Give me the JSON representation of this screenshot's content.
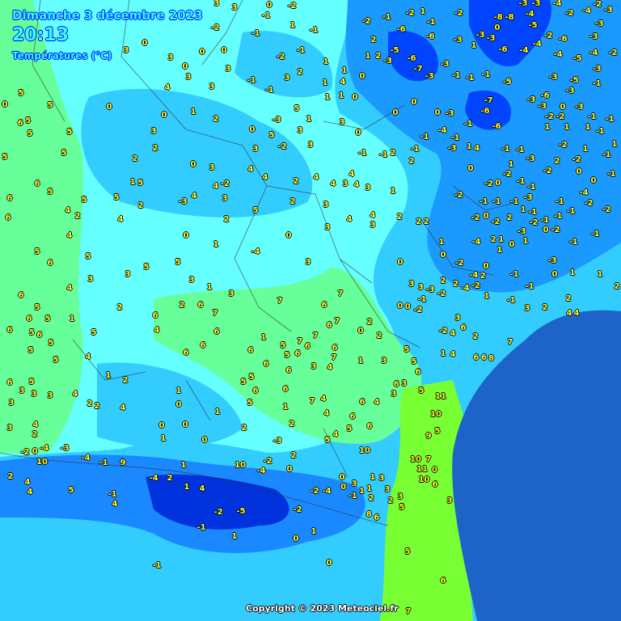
{
  "header": {
    "date": "Dimanche 3 décembre 2023",
    "time": "20:13",
    "parameter": "Températures (°C)"
  },
  "copyright": "Copyright © 2023 Meteociel.fr",
  "colors": {
    "cold_dark": "#0022ee",
    "cold": "#1a88ff",
    "cool": "#33ccff",
    "mild": "#66ffff",
    "warm": "#66ff99",
    "warmer": "#77ff33",
    "sea": "#1e64c8",
    "label": "#ffff33"
  },
  "temperature_unit": "°C",
  "stations": [
    0,
    -2,
    3,
    3,
    -1,
    1,
    -1,
    -2,
    -1,
    0,
    3,
    0,
    0,
    -2,
    -1,
    3,
    0,
    3,
    3,
    -1,
    -1,
    3,
    2,
    1,
    1,
    0,
    1,
    4,
    1,
    1,
    0,
    2,
    -2,
    -1,
    -2,
    1,
    -1,
    -6,
    -2,
    -6,
    -6,
    -7,
    -3,
    -5,
    2,
    1,
    -3,
    -3,
    1,
    -3,
    -3,
    -8,
    -8,
    0,
    -5,
    -4,
    -3,
    -3,
    -4,
    -2,
    -4,
    -2,
    -3,
    -3,
    -3,
    -2,
    -6,
    -4,
    -4,
    -6,
    -4,
    -5,
    -4,
    -2,
    -3,
    -5,
    -1,
    -3,
    -3,
    -5,
    -1,
    -1,
    -1,
    -3,
    -7,
    -6,
    -6,
    -3,
    -6,
    -3,
    -2,
    -2,
    0,
    -3,
    -1,
    -1,
    -1,
    1,
    1,
    1,
    -1,
    -3,
    -4,
    0,
    0,
    0,
    -1,
    -3,
    -1,
    1,
    4,
    -1,
    -1,
    -3,
    1,
    0,
    -2,
    -2,
    0,
    -1,
    -1,
    -2,
    2,
    -2,
    0,
    0,
    -4,
    -1,
    -1,
    1,
    1,
    -2,
    -1,
    -1,
    -1,
    -3,
    -1,
    -2,
    -1,
    -1,
    -1,
    -1,
    -2,
    -2,
    -2,
    0,
    -2,
    2,
    1,
    -2,
    0,
    -3,
    1,
    0,
    1,
    -4,
    2,
    1,
    -1,
    -1,
    -2,
    1,
    0,
    -2,
    0,
    -4,
    2,
    -2,
    -4,
    2,
    -1,
    -1,
    -1,
    1,
    -3,
    0,
    1,
    1,
    2,
    2,
    2,
    3,
    4,
    4,
    2,
    -2,
    -3,
    -1,
    -2,
    0,
    0,
    3,
    3,
    0,
    1,
    2,
    2,
    2,
    4,
    3,
    4,
    3,
    4,
    3,
    4,
    3,
    3,
    4,
    4,
    2,
    2,
    4,
    4,
    -3,
    5,
    1,
    3,
    5,
    0,
    3,
    -2,
    3,
    3,
    0,
    -1,
    -1,
    2,
    -1,
    2,
    0,
    5,
    6,
    5,
    5,
    5,
    5,
    5,
    5,
    6,
    6,
    6,
    5,
    4,
    2,
    5,
    5,
    4,
    1,
    2,
    3,
    2,
    2,
    -3,
    4,
    4,
    -2,
    3,
    3,
    0,
    2,
    5,
    5,
    0,
    0,
    1,
    2,
    4,
    3,
    0,
    1,
    -4,
    0,
    3,
    5,
    5,
    3,
    3,
    4,
    5,
    6,
    5,
    4,
    6,
    5,
    5,
    6,
    6,
    5,
    6,
    5,
    5,
    5,
    6,
    5,
    3,
    3,
    3,
    3,
    4,
    2,
    2,
    1,
    2,
    4,
    4,
    5,
    1,
    2,
    6,
    4,
    2,
    3,
    1,
    3,
    6,
    6,
    7,
    6,
    6,
    6,
    1,
    7,
    6,
    7,
    7,
    6,
    7,
    7,
    6,
    5,
    6,
    5,
    6,
    5,
    5,
    6,
    5,
    6,
    6,
    3,
    4,
    6,
    7,
    1,
    3,
    2,
    2,
    0,
    5,
    5,
    6,
    3,
    6,
    3,
    5,
    4,
    6,
    7,
    4,
    4,
    6,
    6,
    5,
    4,
    5,
    2,
    1,
    2,
    1,
    0,
    0,
    1,
    1,
    0,
    0,
    -3,
    -2,
    2,
    0,
    -4,
    10,
    10,
    11,
    10,
    5,
    9,
    10,
    7,
    0,
    11,
    10,
    6,
    3,
    1,
    -2,
    4,
    3,
    6,
    2,
    4,
    6,
    6,
    8,
    7,
    6,
    7,
    5,
    3,
    5,
    2,
    3,
    2,
    1,
    -1,
    0,
    0,
    3,
    1,
    1,
    3,
    -2,
    -4,
    -2,
    1,
    0,
    0,
    -5,
    1,
    -1,
    -2,
    1,
    2,
    -4,
    -1,
    1,
    4,
    9,
    -1,
    -4,
    -1,
    4,
    5,
    10,
    -3,
    -4,
    0,
    -2,
    2,
    4,
    4,
    3,
    4,
    2,
    8,
    6
  ]
}
